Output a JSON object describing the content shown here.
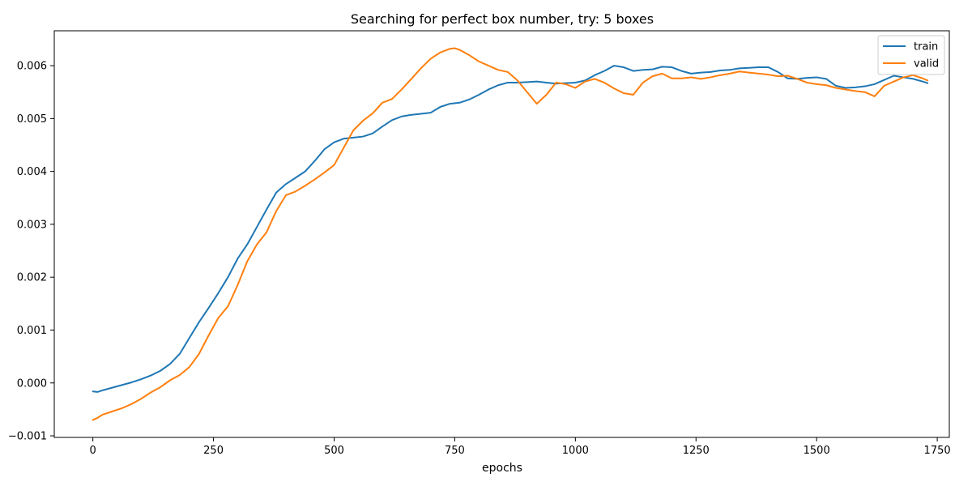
{
  "chart_data": {
    "type": "line",
    "title": "Searching for perfect box number, try: 5 boxes",
    "xlabel": "epochs",
    "ylabel": "",
    "xlim": [
      -80,
      1775
    ],
    "ylim": [
      -0.00103,
      0.00666
    ],
    "xticks": [
      0,
      250,
      500,
      750,
      1000,
      1250,
      1500,
      1750
    ],
    "xtick_labels": [
      "0",
      "250",
      "500",
      "750",
      "1000",
      "1250",
      "1500",
      "1750"
    ],
    "yticks": [
      -0.001,
      0.0,
      0.001,
      0.002,
      0.003,
      0.004,
      0.005,
      0.006
    ],
    "ytick_labels": [
      "−0.001",
      "0.000",
      "0.001",
      "0.002",
      "0.003",
      "0.004",
      "0.005",
      "0.006"
    ],
    "grid": false,
    "legend_position": "top-right",
    "series": [
      {
        "name": "train",
        "color": "#1f77b4",
        "x": [
          0,
          10,
          20,
          40,
          60,
          80,
          100,
          120,
          140,
          160,
          180,
          200,
          220,
          240,
          260,
          280,
          300,
          320,
          340,
          360,
          380,
          400,
          420,
          440,
          460,
          480,
          500,
          520,
          540,
          560,
          580,
          600,
          620,
          640,
          660,
          680,
          700,
          720,
          740,
          760,
          780,
          800,
          820,
          840,
          860,
          880,
          900,
          920,
          940,
          960,
          980,
          1000,
          1020,
          1040,
          1060,
          1080,
          1100,
          1120,
          1140,
          1160,
          1180,
          1200,
          1220,
          1240,
          1260,
          1280,
          1300,
          1320,
          1340,
          1360,
          1380,
          1400,
          1420,
          1440,
          1460,
          1480,
          1500,
          1520,
          1540,
          1560,
          1580,
          1600,
          1620,
          1640,
          1660,
          1680,
          1700,
          1720,
          1730
        ],
        "y": [
          -0.00016,
          -0.00017,
          -0.00014,
          -9e-05,
          -4e-05,
          1e-05,
          7e-05,
          0.00014,
          0.00023,
          0.00036,
          0.00055,
          0.00085,
          0.00115,
          0.00142,
          0.0017,
          0.002,
          0.00235,
          0.00262,
          0.00295,
          0.00328,
          0.0036,
          0.00376,
          0.00388,
          0.004,
          0.0042,
          0.00442,
          0.00455,
          0.00462,
          0.00464,
          0.00466,
          0.00472,
          0.00485,
          0.00497,
          0.00504,
          0.00507,
          0.00509,
          0.00511,
          0.00522,
          0.00528,
          0.0053,
          0.00536,
          0.00545,
          0.00555,
          0.00563,
          0.00568,
          0.00568,
          0.00569,
          0.0057,
          0.00568,
          0.00566,
          0.00567,
          0.00568,
          0.00572,
          0.00582,
          0.0059,
          0.006,
          0.00597,
          0.0059,
          0.00592,
          0.00593,
          0.00598,
          0.00597,
          0.0059,
          0.00585,
          0.00587,
          0.00588,
          0.00591,
          0.00592,
          0.00595,
          0.00596,
          0.00597,
          0.00597,
          0.00588,
          0.00576,
          0.00575,
          0.00577,
          0.00578,
          0.00575,
          0.00562,
          0.00558,
          0.00559,
          0.00561,
          0.00565,
          0.00573,
          0.00581,
          0.00578,
          0.00575,
          0.0057,
          0.00567
        ]
      },
      {
        "name": "valid",
        "color": "#ff7f0e",
        "x": [
          0,
          10,
          20,
          40,
          60,
          80,
          100,
          120,
          140,
          160,
          180,
          200,
          220,
          240,
          260,
          280,
          300,
          320,
          340,
          360,
          380,
          400,
          420,
          440,
          460,
          480,
          500,
          520,
          540,
          560,
          580,
          600,
          620,
          640,
          660,
          680,
          700,
          720,
          740,
          750,
          760,
          780,
          800,
          820,
          840,
          860,
          880,
          900,
          920,
          940,
          960,
          980,
          1000,
          1020,
          1040,
          1060,
          1080,
          1100,
          1120,
          1140,
          1160,
          1180,
          1200,
          1220,
          1240,
          1260,
          1280,
          1300,
          1320,
          1340,
          1360,
          1380,
          1400,
          1420,
          1440,
          1460,
          1480,
          1500,
          1520,
          1540,
          1560,
          1580,
          1600,
          1620,
          1640,
          1660,
          1680,
          1700,
          1720,
          1730
        ],
        "y": [
          -0.0007,
          -0.00066,
          -0.0006,
          -0.00054,
          -0.00048,
          -0.0004,
          -0.0003,
          -0.00018,
          -8e-05,
          5e-05,
          0.00015,
          0.0003,
          0.00055,
          0.0009,
          0.00123,
          0.00145,
          0.00185,
          0.0023,
          0.00262,
          0.00285,
          0.00325,
          0.00355,
          0.00362,
          0.00373,
          0.00385,
          0.00398,
          0.00412,
          0.00445,
          0.00478,
          0.00496,
          0.0051,
          0.0053,
          0.00537,
          0.00555,
          0.00575,
          0.00595,
          0.00613,
          0.00625,
          0.00632,
          0.00633,
          0.0063,
          0.0062,
          0.00608,
          0.006,
          0.00592,
          0.00588,
          0.00572,
          0.0055,
          0.00528,
          0.00545,
          0.00568,
          0.00565,
          0.00558,
          0.0057,
          0.00575,
          0.00568,
          0.00557,
          0.00548,
          0.00545,
          0.00568,
          0.0058,
          0.00585,
          0.00576,
          0.00576,
          0.00578,
          0.00575,
          0.00578,
          0.00582,
          0.00585,
          0.00589,
          0.00587,
          0.00585,
          0.00583,
          0.0058,
          0.00581,
          0.00575,
          0.00568,
          0.00565,
          0.00563,
          0.00558,
          0.00555,
          0.00552,
          0.0055,
          0.00542,
          0.00562,
          0.0057,
          0.00578,
          0.00582,
          0.00576,
          0.00572
        ]
      }
    ]
  }
}
